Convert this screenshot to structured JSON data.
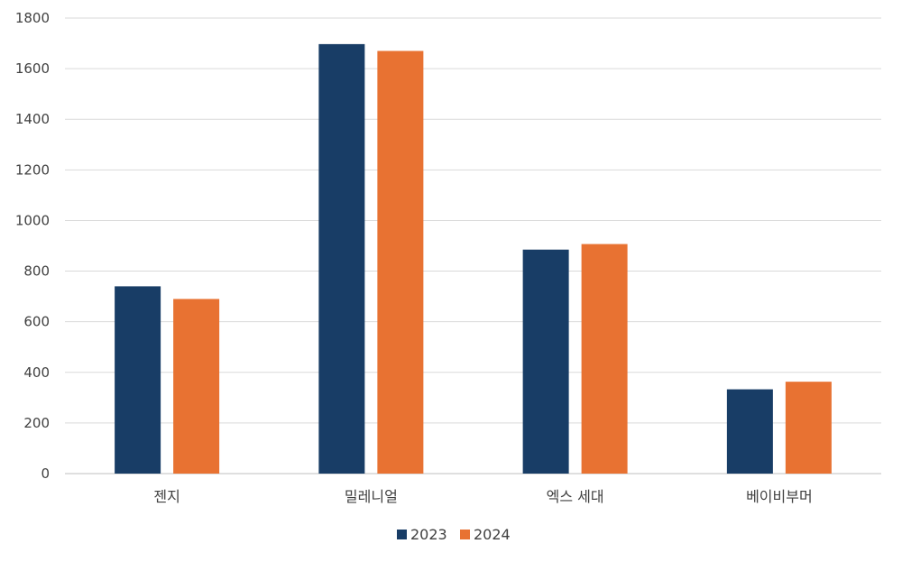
{
  "chart_data": {
    "type": "bar",
    "title": "",
    "xlabel": "",
    "ylabel": "",
    "categories": [
      "젠지",
      "밀레니얼",
      "엑스 세대",
      "베이비부머"
    ],
    "series": [
      {
        "name": "2023",
        "values": [
          740,
          1697,
          885,
          333
        ],
        "color": "#183d66"
      },
      {
        "name": "2024",
        "values": [
          690,
          1670,
          907,
          363
        ],
        "color": "#e87232"
      }
    ],
    "ylim": [
      0,
      1800
    ],
    "yticks": [
      0,
      200,
      400,
      600,
      800,
      1000,
      1200,
      1400,
      1600,
      1800
    ],
    "grid": true,
    "legend": "bottom-center"
  }
}
